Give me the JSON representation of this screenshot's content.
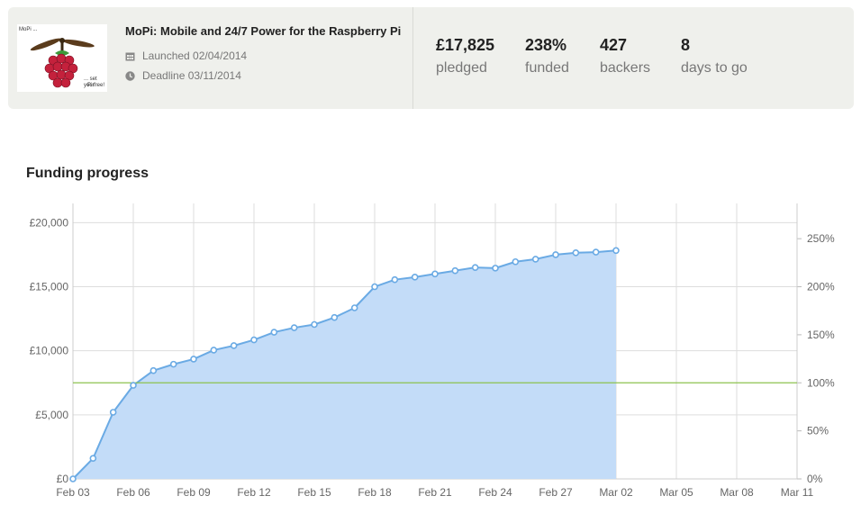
{
  "project": {
    "title": "MoPi: Mobile and 24/7 Power for the Raspberry Pi",
    "launched": "Launched 02/04/2014",
    "deadline": "Deadline 03/11/2014",
    "thumbnail": {
      "top_text": "MoPi ...",
      "bottom_text_1": "... set your",
      "bottom_text_2": "Pi free!"
    }
  },
  "stats": [
    {
      "value": "£17,825",
      "label": "pledged"
    },
    {
      "value": "238%",
      "label": "funded"
    },
    {
      "value": "427",
      "label": "backers"
    },
    {
      "value": "8",
      "label": "days to go"
    }
  ],
  "section_title": "Funding progress",
  "colors": {
    "line": "#6aaae4",
    "fill": "#c3dcf8",
    "goal_line": "#8dc24f",
    "grid": "#dddddd"
  },
  "chart_data": {
    "type": "area",
    "title": "",
    "x_range": [
      "2014-02-03",
      "2014-03-11"
    ],
    "ylim": [
      0,
      21500
    ],
    "y2lim": [
      0,
      286.7
    ],
    "y_ticks": [
      "£0",
      "£5,000",
      "£10,000",
      "£15,000",
      "£20,000"
    ],
    "y_tick_values": [
      0,
      5000,
      10000,
      15000,
      20000
    ],
    "y2_ticks": [
      "0%",
      "50%",
      "100%",
      "150%",
      "200%",
      "250%"
    ],
    "y2_tick_values": [
      0,
      50,
      100,
      150,
      200,
      250
    ],
    "x_ticks": [
      "Feb 03",
      "Feb 06",
      "Feb 09",
      "Feb 12",
      "Feb 15",
      "Feb 18",
      "Feb 21",
      "Feb 24",
      "Feb 27",
      "Mar 02",
      "Mar 05",
      "Mar 08",
      "Mar 11"
    ],
    "x_tick_dates": [
      "2014-02-03",
      "2014-02-06",
      "2014-02-09",
      "2014-02-12",
      "2014-02-15",
      "2014-02-18",
      "2014-02-21",
      "2014-02-24",
      "2014-02-27",
      "2014-03-02",
      "2014-03-05",
      "2014-03-08",
      "2014-03-11"
    ],
    "goal": 7500,
    "grid": true,
    "series": [
      {
        "x": [
          "2014-02-03",
          "2014-02-04",
          "2014-02-05",
          "2014-02-06",
          "2014-02-07",
          "2014-02-08",
          "2014-02-09",
          "2014-02-10",
          "2014-02-11",
          "2014-02-12",
          "2014-02-13",
          "2014-02-14",
          "2014-02-15",
          "2014-02-16",
          "2014-02-17",
          "2014-02-18",
          "2014-02-19",
          "2014-02-20",
          "2014-02-21",
          "2014-02-22",
          "2014-02-23",
          "2014-02-24",
          "2014-02-25",
          "2014-02-26",
          "2014-02-27",
          "2014-02-28",
          "2014-03-01",
          "2014-03-02"
        ],
        "values": [
          0,
          1600,
          5200,
          7300,
          8450,
          8950,
          9350,
          10050,
          10400,
          10850,
          11450,
          11800,
          12050,
          12600,
          13350,
          15000,
          15550,
          15750,
          16000,
          16250,
          16500,
          16450,
          16950,
          17150,
          17500,
          17650,
          17700,
          17825
        ]
      }
    ]
  }
}
